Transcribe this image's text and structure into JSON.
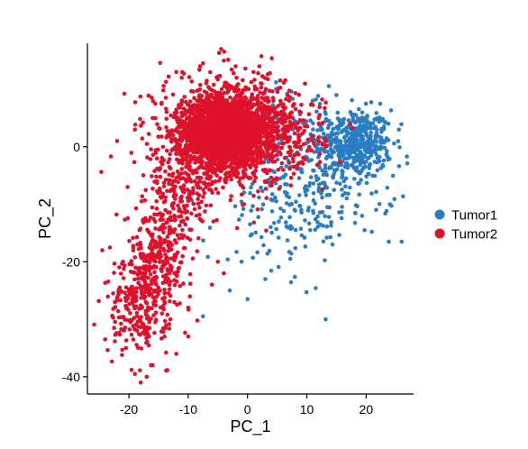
{
  "chart_data": {
    "type": "scatter",
    "title": "",
    "xlabel": "PC_1",
    "ylabel": "PC_2",
    "xlim": [
      -27,
      28
    ],
    "ylim": [
      -43,
      18
    ],
    "x_ticks": [
      -20,
      -10,
      0,
      10,
      20
    ],
    "y_ticks": [
      0,
      -20,
      -40
    ],
    "x_tick_labels": [
      "-20",
      "-10",
      "0",
      "10",
      "20"
    ],
    "y_tick_labels": [
      "0",
      "-20",
      "-40"
    ],
    "grid": false,
    "legend_position": "right",
    "series": [
      {
        "name": "Tumor1",
        "color": "#2a7dc2",
        "clusters": [
          {
            "cx": 18,
            "cy": 0.5,
            "sx": 3.2,
            "sy": 3.0,
            "n": 420
          },
          {
            "cx": 13,
            "cy": -6,
            "sx": 6,
            "sy": 5,
            "n": 230
          },
          {
            "cx": 5,
            "cy": -15,
            "sx": 6,
            "sy": 5,
            "n": 70
          },
          {
            "cx": 10,
            "cy": 4,
            "sx": 5,
            "sy": 3,
            "n": 60
          }
        ],
        "points": [
          [
            -7.5,
            -29.5
          ],
          [
            0,
            -26.5
          ],
          [
            -3,
            -25
          ],
          [
            26,
            -16.5
          ],
          [
            3,
            -23
          ],
          [
            -1,
            -20
          ],
          [
            24,
            -10
          ],
          [
            15,
            9
          ],
          [
            11,
            8
          ]
        ]
      },
      {
        "name": "Tumor2",
        "color": "#e0112b",
        "clusters": [
          {
            "cx": -4,
            "cy": 2.5,
            "sx": 3.5,
            "sy": 3.0,
            "n": 2200
          },
          {
            "cx": -3,
            "cy": 3,
            "sx": 6,
            "sy": 5,
            "n": 700
          },
          {
            "cx": 4,
            "cy": 2,
            "sx": 4.5,
            "sy": 3.5,
            "n": 260
          },
          {
            "cx": -11,
            "cy": -8,
            "sx": 3,
            "sy": 4,
            "n": 200
          },
          {
            "cx": -15,
            "cy": -19,
            "sx": 2.8,
            "sy": 4.5,
            "n": 280
          },
          {
            "cx": -18.5,
            "cy": -28,
            "sx": 2.5,
            "sy": 4,
            "n": 220
          }
        ],
        "points": [
          [
            -24,
            -33.5
          ],
          [
            -22.5,
            -31.5
          ],
          [
            -19,
            -39.5
          ],
          [
            -18,
            -41
          ],
          [
            -16,
            -38
          ],
          [
            -21,
            -20
          ],
          [
            -24.5,
            -18
          ],
          [
            -20.5,
            -35
          ],
          [
            -13,
            -30
          ],
          [
            -10,
            -33
          ],
          [
            -12,
            -36
          ],
          [
            -5,
            -20
          ],
          [
            -4,
            -22
          ],
          [
            -8,
            14
          ],
          [
            -12,
            13
          ],
          [
            -16,
            5
          ],
          [
            -22,
            1
          ],
          [
            -19,
            3
          ],
          [
            -7.5,
            14.5
          ],
          [
            1,
            13
          ],
          [
            -2,
            14
          ],
          [
            2,
            14
          ],
          [
            7,
            8
          ],
          [
            12,
            5
          ],
          [
            9,
            6
          ],
          [
            -10,
            -28
          ],
          [
            -14,
            -33
          ],
          [
            -17,
            -40
          ],
          [
            -6,
            -24
          ]
        ]
      }
    ]
  }
}
